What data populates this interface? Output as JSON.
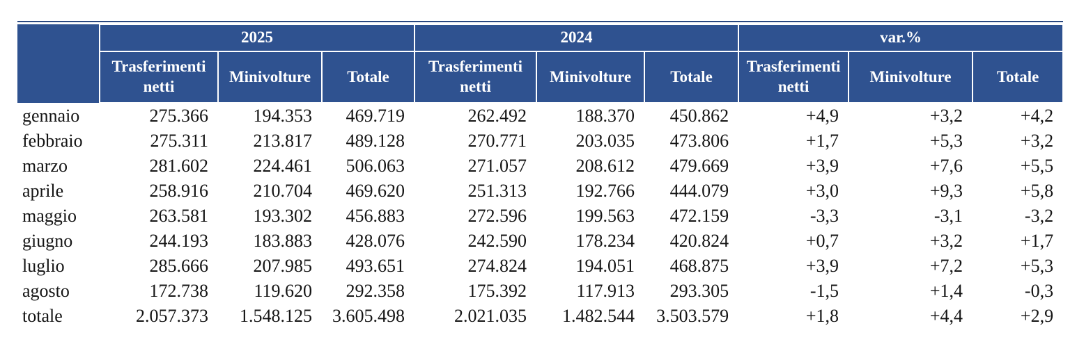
{
  "chart_data": {
    "type": "table",
    "title": "",
    "column_groups": [
      "2025",
      "2024",
      "var.%"
    ],
    "sub_columns": [
      "Trasferimenti netti",
      "Minivolture",
      "Totale"
    ],
    "row_label_header": "",
    "rows": [
      {
        "label": "gennaio",
        "cells": [
          "275.366",
          "194.353",
          "469.719",
          "262.492",
          "188.370",
          "450.862",
          "+4,9",
          "+3,2",
          "+4,2"
        ]
      },
      {
        "label": "febbraio",
        "cells": [
          "275.311",
          "213.817",
          "489.128",
          "270.771",
          "203.035",
          "473.806",
          "+1,7",
          "+5,3",
          "+3,2"
        ]
      },
      {
        "label": "marzo",
        "cells": [
          "281.602",
          "224.461",
          "506.063",
          "271.057",
          "208.612",
          "479.669",
          "+3,9",
          "+7,6",
          "+5,5"
        ]
      },
      {
        "label": "aprile",
        "cells": [
          "258.916",
          "210.704",
          "469.620",
          "251.313",
          "192.766",
          "444.079",
          "+3,0",
          "+9,3",
          "+5,8"
        ]
      },
      {
        "label": "maggio",
        "cells": [
          "263.581",
          "193.302",
          "456.883",
          "272.596",
          "199.563",
          "472.159",
          "-3,3",
          "-3,1",
          "-3,2"
        ]
      },
      {
        "label": "giugno",
        "cells": [
          "244.193",
          "183.883",
          "428.076",
          "242.590",
          "178.234",
          "420.824",
          "+0,7",
          "+3,2",
          "+1,7"
        ]
      },
      {
        "label": "luglio",
        "cells": [
          "285.666",
          "207.985",
          "493.651",
          "274.824",
          "194.051",
          "468.875",
          "+3,9",
          "+7,2",
          "+5,3"
        ]
      },
      {
        "label": "agosto",
        "cells": [
          "172.738",
          "119.620",
          "292.358",
          "175.392",
          "117.913",
          "293.305",
          "-1,5",
          "+1,4",
          "-0,3"
        ]
      },
      {
        "label": "totale",
        "cells": [
          "2.057.373",
          "1.548.125",
          "3.605.498",
          "2.021.035",
          "1.482.544",
          "3.503.579",
          "+1,8",
          "+4,4",
          "+2,9"
        ]
      }
    ],
    "layout": {
      "header_bg": "#2F5290",
      "header_text_color": "#FFFFFF",
      "grid_color": "#FFFFFF",
      "body_text_color": "#141414",
      "gridlines_in_body": false
    }
  }
}
